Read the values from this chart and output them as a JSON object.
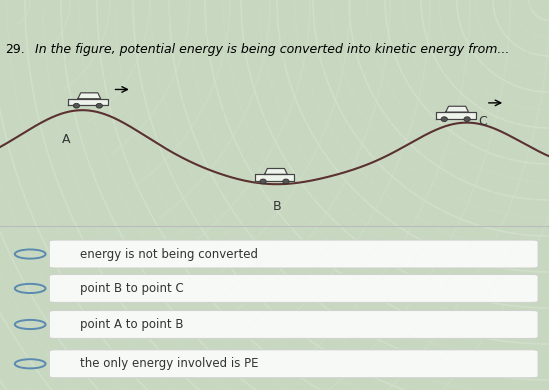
{
  "question_number": "29.",
  "question_text": "In the figure, potential energy is being converted into kinetic energy from...",
  "banner_bg": "#3a6fc4",
  "curve_color": "#5a3030",
  "point_A_label": "A",
  "point_B_label": "B",
  "point_C_label": "C",
  "choices": [
    "energy is not being converted",
    "point B to point C",
    "point A to point B",
    "the only energy involved is PE"
  ],
  "choice_box_color": "#ffffff",
  "choice_text_color": "#333333",
  "circle_color": "#5a8ab0",
  "wavy_bg_light": "#d8e8d0",
  "wavy_bg_mid": "#c8d8c0",
  "banner_text_color": "#000000"
}
